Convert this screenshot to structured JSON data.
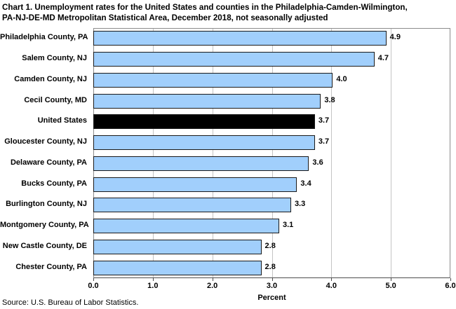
{
  "chart_data": {
    "type": "bar",
    "orientation": "horizontal",
    "title": "Chart 1. Unemployment rates for the United States and counties in the Philadelphia-Camden-Wilmington, PA-NJ-DE-MD Metropolitan Statistical Area, December 2018, not seasonally adjusted",
    "title_lines": [
      "Chart 1. Unemployment rates for the United States and counties in the Philadelphia-Camden-Wilmington,",
      "PA-NJ-DE-MD Metropolitan Statistical Area, December 2018, not seasonally adjusted"
    ],
    "categories": [
      "Philadelphia County, PA",
      "Salem County, NJ",
      "Camden County, NJ",
      "Cecil County, MD",
      "United States",
      "Gloucester County, NJ",
      "Delaware County, PA",
      "Bucks County, PA",
      "Burlington County, NJ",
      "Montgomery County, PA",
      "New Castle County, DE",
      "Chester County, PA"
    ],
    "values": [
      4.9,
      4.7,
      4.0,
      3.8,
      3.7,
      3.7,
      3.6,
      3.4,
      3.3,
      3.1,
      2.8,
      2.8
    ],
    "value_labels": [
      "4.9",
      "4.7",
      "4.0",
      "3.8",
      "3.7",
      "3.7",
      "3.6",
      "3.4",
      "3.3",
      "3.1",
      "2.8",
      "2.8"
    ],
    "highlighted_category": "United States",
    "xlabel": "Percent",
    "xlim": [
      0.0,
      6.0
    ],
    "xticks": [
      "0.0",
      "1.0",
      "2.0",
      "3.0",
      "4.0",
      "5.0",
      "6.0"
    ],
    "grid": "vertical gridlines at each 1.0 unit",
    "legend": "none",
    "colors": {
      "bar_fill": "#a1cffc",
      "bar_border": "#1a1a1a",
      "highlight_fill": "#000000",
      "gridline": "#c4c4c4",
      "frame": "#8c8c8c",
      "text": "#000000"
    },
    "source": "Source: U.S. Bureau of Labor Statistics."
  }
}
